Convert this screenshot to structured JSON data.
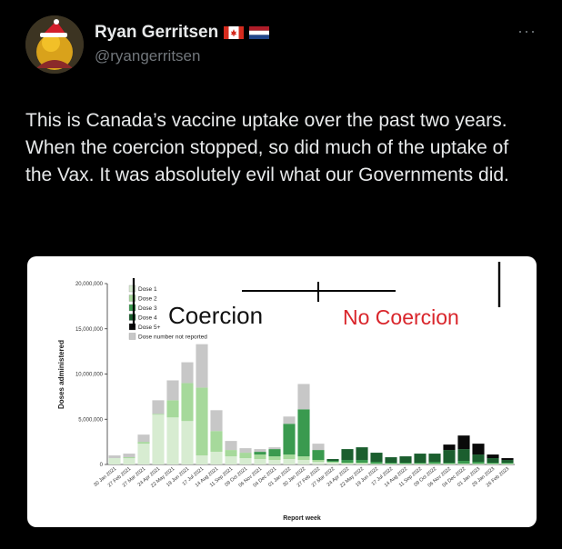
{
  "user": {
    "name": "Ryan Gerritsen",
    "handle": "@ryangerritsen",
    "flags": [
      "canada-flag-icon",
      "netherlands-flag-icon"
    ]
  },
  "tweet": {
    "text": "This is Canada’s vaccine uptake over the past two years. When the coercion stopped, so did much of the uptake of the Vax. It was absolutely evil what our Governments did."
  },
  "more_label": "···",
  "chart_data": {
    "type": "bar",
    "title": "",
    "xlabel": "Report week",
    "ylabel": "Doses administered",
    "ylim": [
      0,
      20000000
    ],
    "yticks": [
      "0",
      "5,000,000",
      "10,000,000",
      "15,000,000",
      "20,000,000"
    ],
    "annotations": [
      "Coercion",
      "No Coercion"
    ],
    "legend": [
      "Dose 1",
      "Dose 2",
      "Dose 3",
      "Dose 4",
      "Dose 5+",
      "Dose number not reported"
    ],
    "colors": [
      "#d7ecd1",
      "#a6d99b",
      "#3a9a4f",
      "#1b5e2e",
      "#0a0a0a",
      "#c7c7c7"
    ],
    "categories": [
      "30 Jan 2021",
      "27 Feb 2021",
      "27 Mar 2021",
      "24 Apr 2021",
      "22 May 2021",
      "19 Jun 2021",
      "17 Jul 2021",
      "14 Aug 2021",
      "11 Sep 2021",
      "09 Oct 2021",
      "06 Nov 2021",
      "04 Dec 2021",
      "01 Jan 2022",
      "30 Jan 2022",
      "27 Feb 2022",
      "27 Mar 2022",
      "24 Apr 2022",
      "22 May 2022",
      "19 Jun 2022",
      "17 Jul 2022",
      "14 Aug 2022",
      "11 Sep 2022",
      "09 Oct 2022",
      "06 Nov 2022",
      "04 Dec 2022",
      "01 Jan 2023",
      "29 Jan 2023",
      "26 Feb 2023"
    ],
    "series": [
      {
        "name": "Dose 1",
        "values": [
          700000,
          700000,
          2300000,
          5500000,
          5200000,
          4800000,
          1000000,
          1400000,
          900000,
          700000,
          600000,
          500000,
          600000,
          500000,
          300000,
          200000,
          100000,
          100000,
          50000,
          50000,
          50000,
          50000,
          50000,
          50000,
          50000,
          50000,
          50000,
          50000
        ]
      },
      {
        "name": "Dose 2",
        "values": [
          0,
          100000,
          200000,
          100000,
          1900000,
          4200000,
          7500000,
          2300000,
          700000,
          600000,
          500000,
          400000,
          500000,
          400000,
          200000,
          100000,
          100000,
          100000,
          50000,
          50000,
          50000,
          50000,
          50000,
          50000,
          50000,
          50000,
          50000,
          50000
        ]
      },
      {
        "name": "Dose 3",
        "values": [
          0,
          0,
          0,
          0,
          0,
          0,
          0,
          0,
          0,
          0,
          300000,
          800000,
          3400000,
          5200000,
          1100000,
          100000,
          300000,
          300000,
          200000,
          100000,
          100000,
          100000,
          200000,
          100000,
          300000,
          200000,
          100000,
          100000
        ]
      },
      {
        "name": "Dose 4",
        "values": [
          0,
          0,
          0,
          0,
          0,
          0,
          0,
          0,
          0,
          0,
          0,
          0,
          0,
          0,
          0,
          200000,
          1200000,
          1400000,
          1000000,
          600000,
          700000,
          1000000,
          900000,
          1400000,
          1300000,
          800000,
          500000,
          300000
        ]
      },
      {
        "name": "Dose 5+",
        "values": [
          0,
          0,
          0,
          0,
          0,
          0,
          0,
          0,
          0,
          0,
          0,
          0,
          0,
          0,
          0,
          0,
          0,
          0,
          0,
          0,
          0,
          0,
          0,
          600000,
          1500000,
          1200000,
          400000,
          200000
        ]
      },
      {
        "name": "Dose number not reported",
        "values": [
          300000,
          400000,
          800000,
          1500000,
          2200000,
          2300000,
          4800000,
          2300000,
          1000000,
          500000,
          300000,
          200000,
          800000,
          2800000,
          700000,
          0,
          0,
          0,
          0,
          0,
          0,
          0,
          0,
          0,
          0,
          0,
          0,
          0
        ]
      }
    ]
  }
}
